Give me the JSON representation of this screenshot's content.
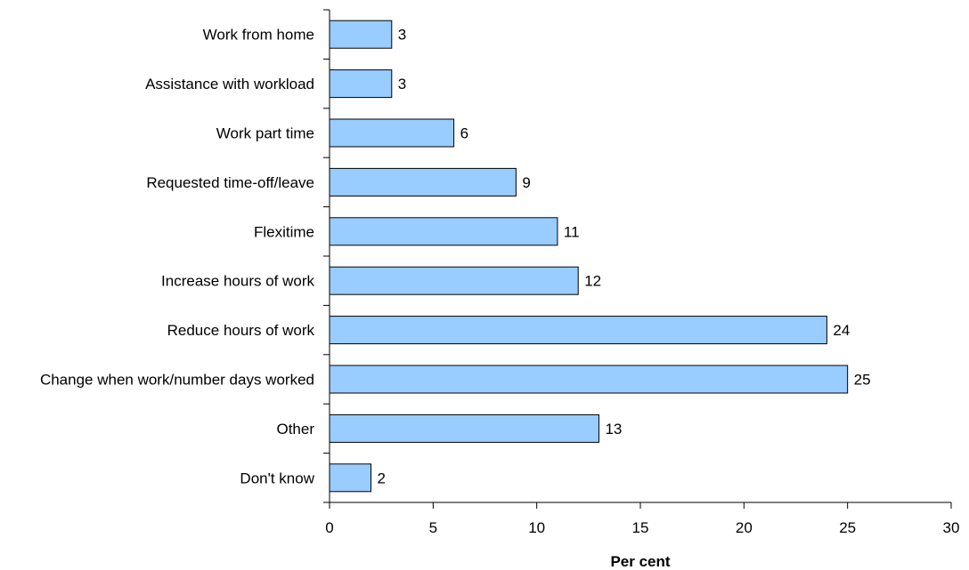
{
  "chart_data": {
    "type": "bar",
    "orientation": "horizontal",
    "categories": [
      "Work from home",
      "Assistance with workload",
      "Work part time",
      "Requested time-off/leave",
      "Flexitime",
      "Increase hours of work",
      "Reduce hours of work",
      "Change when work/number days worked",
      "Other",
      "Don't know"
    ],
    "values": [
      3,
      3,
      6,
      9,
      11,
      12,
      24,
      25,
      13,
      2
    ],
    "xlabel": "Per cent",
    "ylabel": "",
    "xlim": [
      0,
      30
    ],
    "xticks": [
      0,
      5,
      10,
      15,
      20,
      25,
      30
    ],
    "grid": false,
    "bar_color": "#99ccff",
    "data_labels": true
  }
}
